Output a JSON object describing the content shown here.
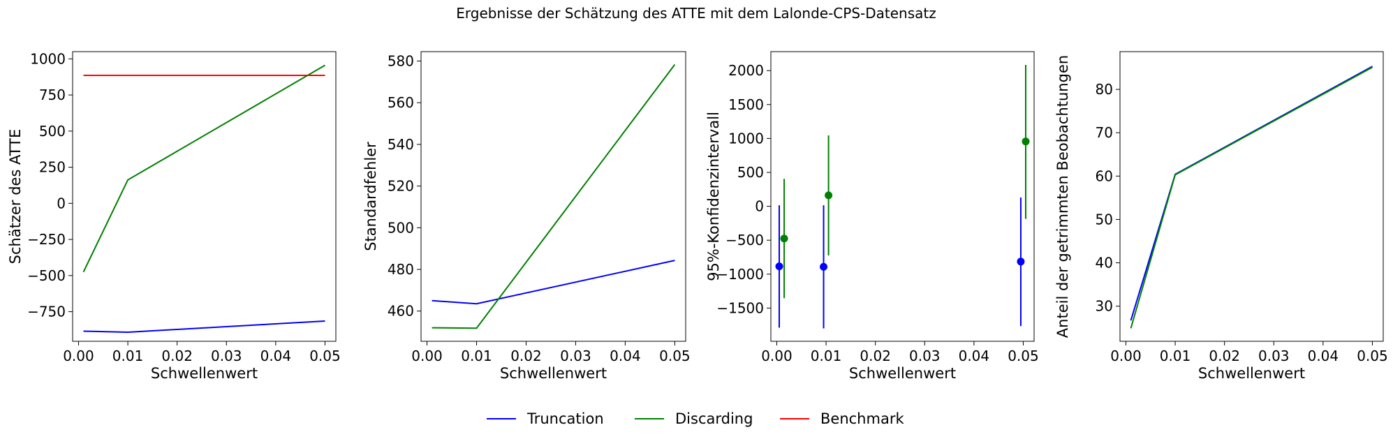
{
  "figure": {
    "title": "Ergebnisse der Schätzung des ATTE mit dem Lalonde-CPS-Datensatz"
  },
  "colors": {
    "Truncation": "#0000ff",
    "Discarding": "#008000",
    "Benchmark": "#ff0000"
  },
  "legend": {
    "placement": "bottom-center",
    "items": [
      {
        "label": "Truncation",
        "color": "#0000ff"
      },
      {
        "label": "Discarding",
        "color": "#008000"
      },
      {
        "label": "Benchmark",
        "color": "#ff0000"
      }
    ]
  },
  "chart_data": [
    {
      "type": "line",
      "xlabel": "Schwellenwert",
      "ylabel": "Schätzer des ATTE",
      "xlim": [
        -0.0012,
        0.0522
      ],
      "ylim": [
        -955,
        1050
      ],
      "xticks": [
        0.0,
        0.01,
        0.02,
        0.03,
        0.04,
        0.05
      ],
      "xtick_labels": [
        "0.00",
        "0.01",
        "0.02",
        "0.03",
        "0.04",
        "0.05"
      ],
      "yticks": [
        -750,
        -500,
        -250,
        0,
        250,
        500,
        750,
        1000
      ],
      "ytick_labels": [
        "−750",
        "−500",
        "−250",
        "0",
        "250",
        "500",
        "750",
        "1000"
      ],
      "series": [
        {
          "name": "Truncation",
          "x": [
            0.001,
            0.01,
            0.05
          ],
          "y": [
            -885,
            -892,
            -815
          ]
        },
        {
          "name": "Discarding",
          "x": [
            0.001,
            0.01,
            0.05
          ],
          "y": [
            -475,
            162,
            956
          ]
        },
        {
          "name": "Benchmark",
          "x": [
            0.001,
            0.05
          ],
          "y": [
            886,
            886
          ]
        }
      ]
    },
    {
      "type": "line",
      "xlabel": "Schwellenwert",
      "ylabel": "Standardfehler",
      "xlim": [
        -0.0012,
        0.0522
      ],
      "ylim": [
        445.5,
        584.5
      ],
      "xticks": [
        0.0,
        0.01,
        0.02,
        0.03,
        0.04,
        0.05
      ],
      "xtick_labels": [
        "0.00",
        "0.01",
        "0.02",
        "0.03",
        "0.04",
        "0.05"
      ],
      "yticks": [
        460,
        480,
        500,
        520,
        540,
        560,
        580
      ],
      "ytick_labels": [
        "460",
        "480",
        "500",
        "520",
        "540",
        "560",
        "580"
      ],
      "series": [
        {
          "name": "Truncation",
          "x": [
            0.001,
            0.01,
            0.05
          ],
          "y": [
            465,
            463.5,
            484.3
          ]
        },
        {
          "name": "Discarding",
          "x": [
            0.001,
            0.01,
            0.05
          ],
          "y": [
            452,
            451.8,
            578.3
          ]
        }
      ]
    },
    {
      "type": "errorbar",
      "xlabel": "Schwellenwert",
      "ylabel": "95%-Konfidenzintervall",
      "xlim": [
        -0.0012,
        0.0522
      ],
      "ylim": [
        -1990,
        2280
      ],
      "xticks": [
        0.0,
        0.01,
        0.02,
        0.03,
        0.04,
        0.05
      ],
      "xtick_labels": [
        "0.00",
        "0.01",
        "0.02",
        "0.03",
        "0.04",
        "0.05"
      ],
      "yticks": [
        -1500,
        -1000,
        -500,
        0,
        500,
        1000,
        1500,
        2000
      ],
      "ytick_labels": [
        "−1500",
        "−1000",
        "−500",
        "0",
        "500",
        "1000",
        "1500",
        "2000"
      ],
      "series": [
        {
          "name": "Truncation",
          "x": [
            0.0005,
            0.0095,
            0.0495
          ],
          "y": [
            -885,
            -892,
            -815
          ],
          "lower": [
            -1790,
            -1800,
            -1765
          ],
          "upper": [
            15,
            15,
            130
          ]
        },
        {
          "name": "Discarding",
          "x": [
            0.0015,
            0.0105,
            0.0505
          ],
          "y": [
            -475,
            162,
            956
          ],
          "lower": [
            -1355,
            -725,
            -185
          ],
          "upper": [
            405,
            1045,
            2085
          ]
        }
      ]
    },
    {
      "type": "line",
      "xlabel": "Schwellenwert",
      "ylabel": "Anteil der getrimmten Beobachtungen",
      "xlim": [
        -0.0012,
        0.0522
      ],
      "ylim": [
        21.9,
        88.7
      ],
      "xticks": [
        0.0,
        0.01,
        0.02,
        0.03,
        0.04,
        0.05
      ],
      "xtick_labels": [
        "0.00",
        "0.01",
        "0.02",
        "0.03",
        "0.04",
        "0.05"
      ],
      "yticks": [
        30,
        40,
        50,
        60,
        70,
        80
      ],
      "ytick_labels": [
        "30",
        "40",
        "50",
        "60",
        "70",
        "80"
      ],
      "series": [
        {
          "name": "Truncation",
          "x": [
            0.001,
            0.01,
            0.05
          ],
          "y": [
            26.7,
            60.4,
            85.3
          ]
        },
        {
          "name": "Discarding",
          "x": [
            0.001,
            0.01,
            0.05
          ],
          "y": [
            24.9,
            60.3,
            85.1
          ]
        }
      ]
    }
  ]
}
